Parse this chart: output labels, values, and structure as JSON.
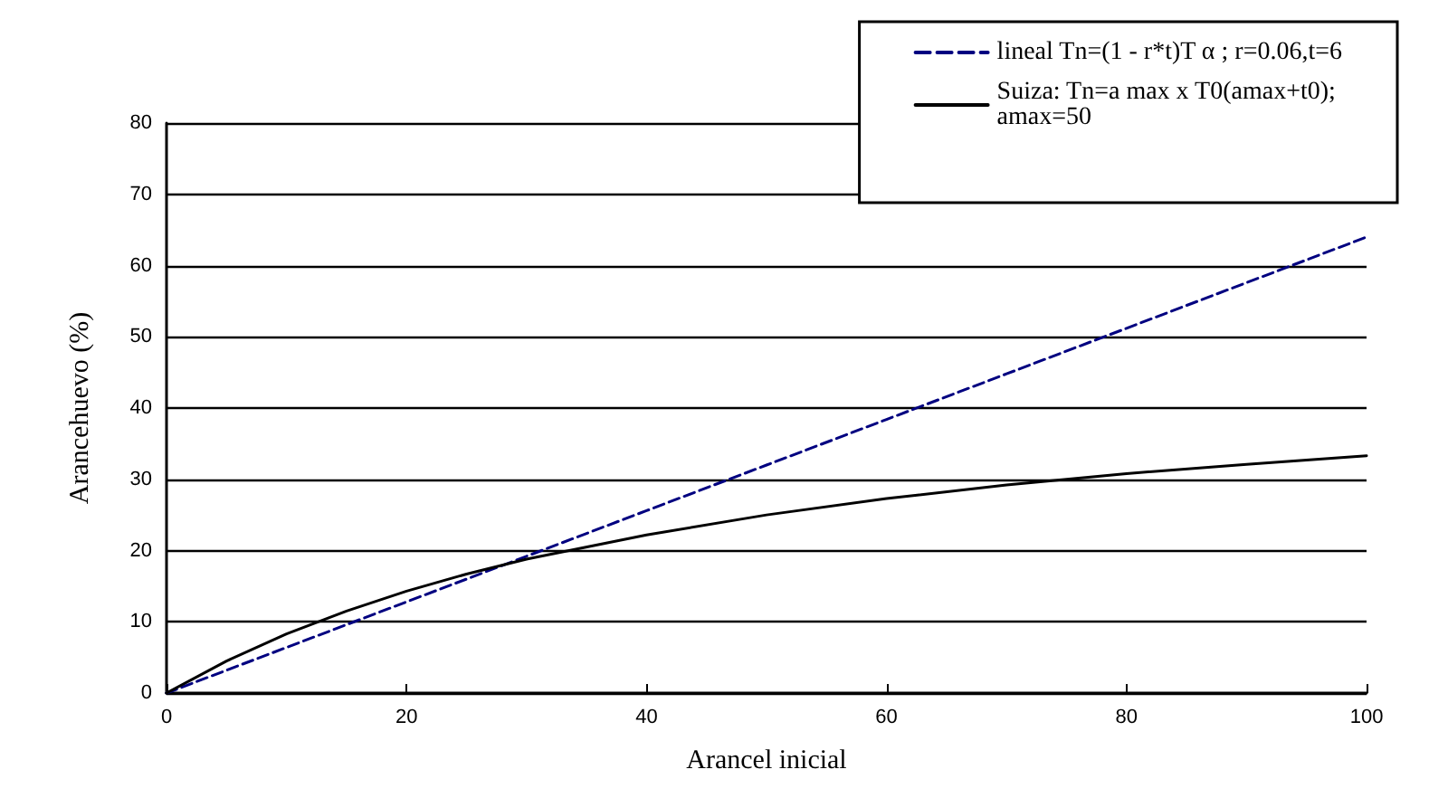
{
  "chart_data": {
    "type": "line",
    "xlabel": "Arancel inicial",
    "ylabel": "Arancehuevo (%)",
    "x": [
      0,
      5,
      10,
      15,
      20,
      25,
      30,
      40,
      50,
      60,
      70,
      80,
      90,
      100
    ],
    "series": [
      {
        "name": "lineal Tn=(1 - r*t)T α ; r=0.06,t=6",
        "color": "#000080",
        "line_style": "dashed",
        "values": [
          0,
          3.2,
          6.4,
          9.6,
          12.8,
          16,
          19.2,
          25.6,
          32,
          38.4,
          44.8,
          51.2,
          57.6,
          64
        ]
      },
      {
        "name": "Suiza: Tn=a max x T0(amax+t0);\namax=50",
        "color": "#000000",
        "line_style": "solid",
        "values": [
          0,
          4.5,
          8.3,
          11.5,
          14.3,
          16.7,
          18.8,
          22.2,
          25,
          27.3,
          29.2,
          30.8,
          32.1,
          33.3
        ]
      }
    ],
    "xlim": [
      0,
      100
    ],
    "xticks": [
      0,
      20,
      40,
      60,
      80,
      100
    ],
    "ylim": [
      0,
      80
    ],
    "yticks": [
      0,
      10,
      20,
      30,
      40,
      50,
      60,
      70,
      80
    ],
    "grid": "y",
    "legend": "top right",
    "marker": "none"
  }
}
